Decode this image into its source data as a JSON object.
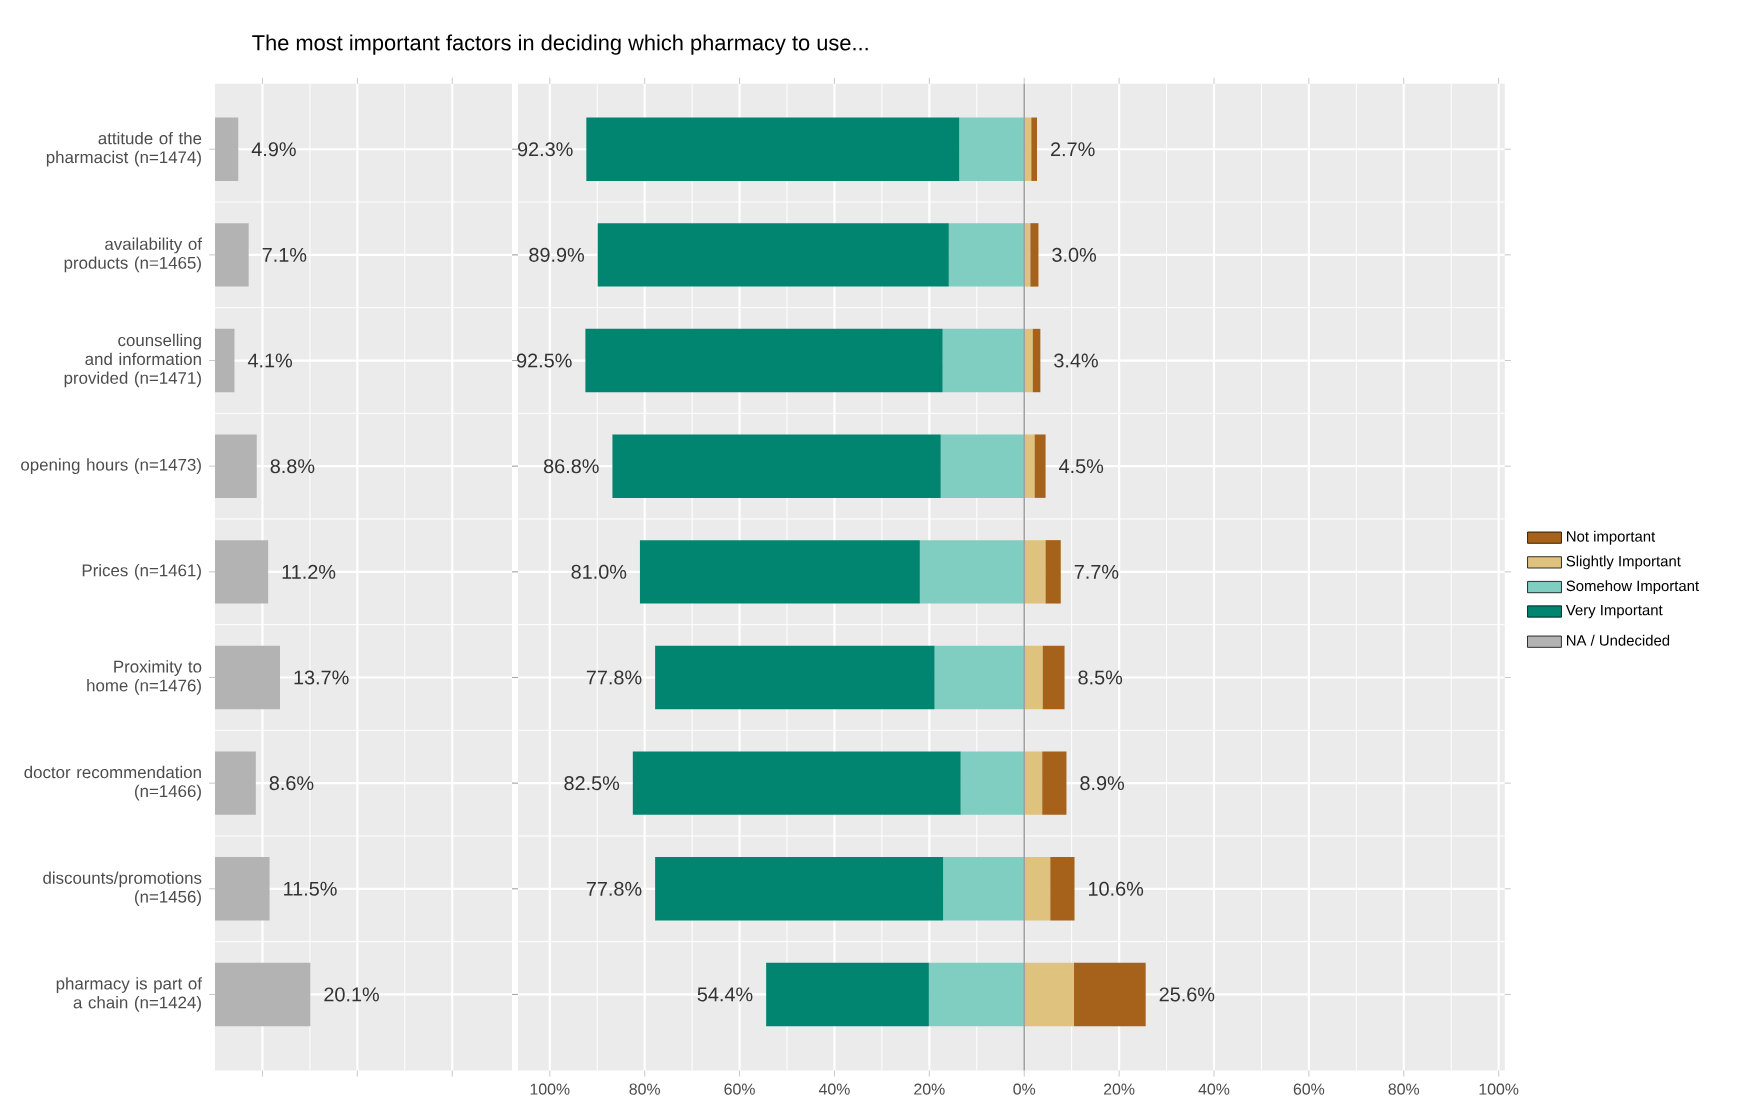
{
  "chart_data": [
    {
      "type": "bar",
      "orientation": "horizontal",
      "title": "The most important factors in deciding which pharmacy to use...",
      "categories": [
        "attitude of the pharmacist (n=1474)",
        "availability of products (n=1465)",
        "counselling and information provided (n=1471)",
        "opening hours (n=1473)",
        "Prices (n=1461)",
        "Proximity to home (n=1476)",
        "doctor recommendation (n=1466)",
        "discounts/promotions (n=1456)",
        "pharmacy is part of a chain (n=1424)"
      ],
      "series": [
        {
          "name": "NA / Undecided",
          "color": "#b3b3b3",
          "values": [
            4.9,
            7.1,
            4.1,
            8.8,
            11.2,
            13.7,
            8.6,
            11.5,
            20.1
          ],
          "value_labels": [
            "4.9%",
            "7.1%",
            "4.1%",
            "8.8%",
            "11.2%",
            "13.7%",
            "8.6%",
            "11.5%",
            "20.1%"
          ]
        }
      ],
      "xlim": [
        0,
        62.6
      ],
      "xticks": [
        {
          "value": 10,
          "label": null
        },
        {
          "value": 30,
          "label": null
        },
        {
          "value": 50,
          "label": null
        }
      ],
      "tick_labels": "y",
      "grid": true,
      "legend": "right"
    },
    {
      "type": "bar",
      "orientation": "horizontal",
      "stacked": true,
      "categories": [
        null,
        null,
        null,
        null,
        null,
        null,
        null,
        null,
        null
      ],
      "series": [
        {
          "name": "Somehow Important",
          "color": "#80cdc1",
          "values": [
            -13.7,
            -15.9,
            -17.2,
            -17.6,
            -22.0,
            -18.9,
            -13.4,
            -17.1,
            -20.1
          ]
        },
        {
          "name": "Very Important",
          "color": "#018571",
          "values": [
            -78.6,
            -74.0,
            -75.3,
            -69.2,
            -59.0,
            -58.9,
            -69.1,
            -60.7,
            -34.3
          ]
        },
        {
          "name": "Slightly Important",
          "color": "#dfc27d",
          "values": [
            1.5,
            1.3,
            1.8,
            2.2,
            4.5,
            3.9,
            3.8,
            5.5,
            10.5
          ]
        },
        {
          "name": "Not important",
          "color": "#a6611a",
          "values": [
            1.2,
            1.7,
            1.6,
            2.3,
            3.2,
            4.6,
            5.1,
            5.1,
            15.1
          ]
        }
      ],
      "totals": [
        [
          "92.3%",
          "2.7%"
        ],
        [
          "89.9%",
          "3.0%"
        ],
        [
          "92.5%",
          "3.4%"
        ],
        [
          "86.8%",
          "4.5%"
        ],
        [
          "81.0%",
          "7.7%"
        ],
        [
          "77.8%",
          "8.5%"
        ],
        [
          "82.5%",
          "8.9%"
        ],
        [
          "77.8%",
          "10.6%"
        ],
        [
          "54.4%",
          "25.6%"
        ]
      ],
      "xlim": [
        -106.7,
        101.3
      ],
      "xticks": [
        {
          "value": -100,
          "label": "100%"
        },
        {
          "value": -80,
          "label": "80%"
        },
        {
          "value": -60,
          "label": "60%"
        },
        {
          "value": -40,
          "label": "40%"
        },
        {
          "value": -20,
          "label": "20%"
        },
        {
          "value": 0,
          "label": "0%"
        },
        {
          "value": 20,
          "label": "20%"
        },
        {
          "value": 40,
          "label": "40%"
        },
        {
          "value": 60,
          "label": "60%"
        },
        {
          "value": 80,
          "label": "80%"
        },
        {
          "value": 100,
          "label": "100%"
        }
      ],
      "ref_lines": [
        {
          "axis": "x",
          "value": 0,
          "color": "#a0a0a0"
        }
      ],
      "tick_labels": "x",
      "grid": true,
      "legend": "right"
    }
  ]
}
